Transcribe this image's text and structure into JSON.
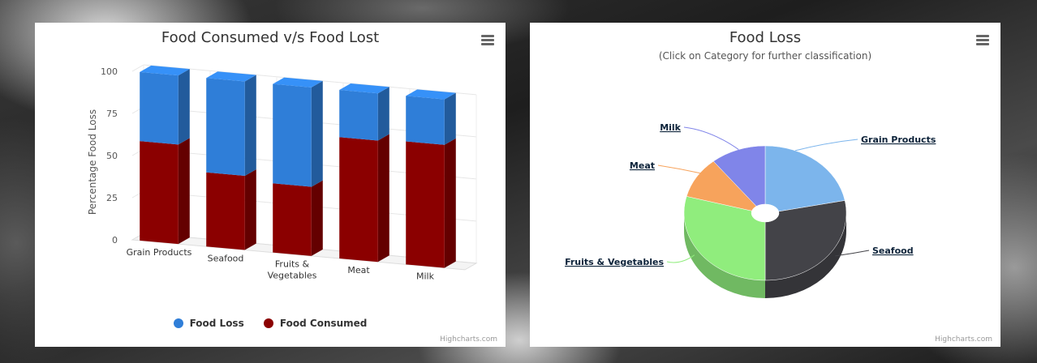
{
  "charts": {
    "left": {
      "title": "Food Consumed v/s Food Lost",
      "menu_icon": "hamburger-menu-icon",
      "credit": "Highcharts.com"
    },
    "right": {
      "title": "Food Loss",
      "subtitle": "(Click on Category for further classification)",
      "menu_icon": "hamburger-menu-icon",
      "credit": "Highcharts.com"
    }
  },
  "colors": {
    "food_loss": "#2f7ed8",
    "food_consumed": "#8b0000",
    "grain_products": "#7cb5ec",
    "seafood": "#434348",
    "fruits_vegetables": "#90ed7d",
    "meat": "#f7a35c",
    "milk": "#8085e9"
  },
  "chart_data": [
    {
      "type": "bar",
      "title": "Food Consumed v/s Food Lost",
      "ylabel": "Percentage Food Loss",
      "xlabel": "",
      "stacked": true,
      "three_d": true,
      "ylim": [
        0,
        100
      ],
      "yticks": [
        0,
        25,
        50,
        75,
        100
      ],
      "categories": [
        "Grain Products",
        "Seafood",
        "Fruits & Vegetables",
        "Meat",
        "Milk"
      ],
      "category_labels": [
        [
          "Grain Products"
        ],
        [
          "Seafood"
        ],
        [
          "Fruits &",
          "Vegetables"
        ],
        [
          "Meat"
        ],
        [
          "Milk"
        ]
      ],
      "series": [
        {
          "name": "Food Loss",
          "values": [
            41,
            56,
            59,
            28,
            27
          ]
        },
        {
          "name": "Food Consumed",
          "values": [
            59,
            44,
            41,
            72,
            73
          ]
        }
      ],
      "legend_position": "bottom-center",
      "grid": true
    },
    {
      "type": "pie",
      "title": "Food Loss",
      "subtitle": "(Click on Category for further classification)",
      "three_d": true,
      "slices": [
        {
          "name": "Grain Products",
          "value": 22
        },
        {
          "name": "Seafood",
          "value": 28
        },
        {
          "name": "Fruits & Vegetables",
          "value": 29
        },
        {
          "name": "Meat",
          "value": 10
        },
        {
          "name": "Milk",
          "value": 11
        }
      ]
    }
  ]
}
